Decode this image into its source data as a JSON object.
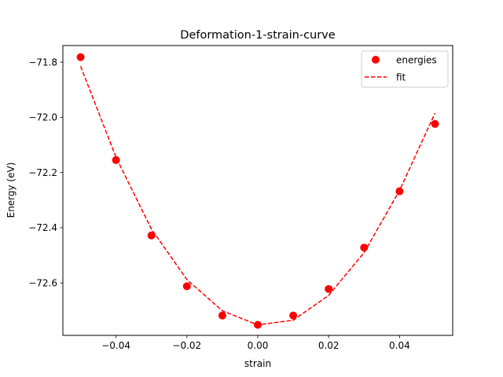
{
  "chart_data": {
    "type": "scatter",
    "title": "Deformation-1-strain-curve",
    "xlabel": "strain",
    "ylabel": "Energy (eV)",
    "xlim": [
      -0.055,
      0.055
    ],
    "ylim": [
      -72.79,
      -71.74
    ],
    "xticks": [
      -0.04,
      -0.02,
      0.0,
      0.02,
      0.04
    ],
    "xtick_labels": [
      "−0.04",
      "−0.02",
      "0.00",
      "0.02",
      "0.04"
    ],
    "yticks": [
      -71.8,
      -72.0,
      -72.2,
      -72.4,
      -72.6
    ],
    "ytick_labels": [
      "−71.8",
      "−72.0",
      "−72.2",
      "−72.4",
      "−72.6"
    ],
    "grid": false,
    "legend": "top-right",
    "series": [
      {
        "name": "energies",
        "kind": "points",
        "color": "#ff0000",
        "x": [
          -0.05,
          -0.04,
          -0.03,
          -0.02,
          -0.01,
          0.0,
          0.01,
          0.02,
          0.03,
          0.04,
          0.05
        ],
        "y": [
          -71.782,
          -72.155,
          -72.428,
          -72.612,
          -72.718,
          -72.752,
          -72.718,
          -72.622,
          -72.472,
          -72.268,
          -72.024
        ]
      },
      {
        "name": "fit",
        "kind": "dashed-line",
        "color": "#ff0000",
        "x": [
          -0.05,
          -0.04,
          -0.03,
          -0.02,
          -0.01,
          0.0,
          0.01,
          0.02,
          0.03,
          0.04,
          0.05
        ],
        "y": [
          -71.815,
          -72.145,
          -72.405,
          -72.588,
          -72.701,
          -72.752,
          -72.735,
          -72.645,
          -72.49,
          -72.265,
          -71.985
        ]
      }
    ]
  }
}
